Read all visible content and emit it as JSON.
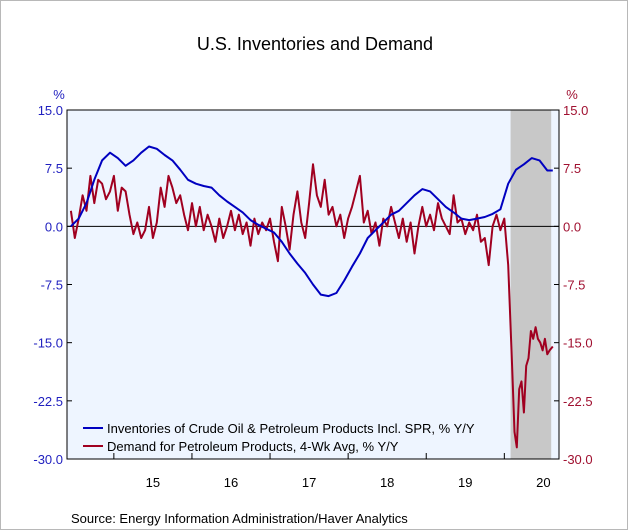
{
  "chart_data": {
    "type": "line",
    "title": "U.S. Inventories and Demand",
    "left_axis_unit": "%",
    "right_axis_unit": "%",
    "ylim": [
      -30,
      15
    ],
    "y_ticks": [
      15.0,
      7.5,
      0.0,
      -7.5,
      -15.0,
      -22.5,
      -30.0
    ],
    "y_tick_labels": [
      "15.0",
      "7.5",
      "0.0",
      "-7.5",
      "-15.0",
      "-22.5",
      "-30.0"
    ],
    "xlim": [
      2014.4,
      2020.7
    ],
    "x_tick_labels": [
      "15",
      "16",
      "17",
      "18",
      "19",
      "20"
    ],
    "recession_shading": [
      2020.08,
      2020.6
    ],
    "grid": false,
    "legend_position": "bottom-left",
    "colors": {
      "inventories": "#0000c0",
      "demand": "#a00020",
      "plot_background": "#eef5ff",
      "recession": "#c8c8c8",
      "left_axis_labels": "#1f1fbf",
      "right_axis_labels": "#a01030"
    },
    "series": [
      {
        "name": "Inventories of Crude Oil & Petroleum Products Incl. SPR, % Y/Y",
        "x": [
          2014.45,
          2014.55,
          2014.65,
          2014.75,
          2014.85,
          2014.95,
          2015.05,
          2015.15,
          2015.25,
          2015.35,
          2015.45,
          2015.55,
          2015.65,
          2015.75,
          2015.85,
          2015.95,
          2016.05,
          2016.15,
          2016.25,
          2016.35,
          2016.45,
          2016.55,
          2016.65,
          2016.75,
          2016.85,
          2016.95,
          2017.05,
          2017.15,
          2017.25,
          2017.35,
          2017.45,
          2017.55,
          2017.65,
          2017.75,
          2017.85,
          2017.95,
          2018.05,
          2018.15,
          2018.25,
          2018.35,
          2018.45,
          2018.55,
          2018.65,
          2018.75,
          2018.85,
          2018.95,
          2019.05,
          2019.15,
          2019.25,
          2019.35,
          2019.45,
          2019.55,
          2019.65,
          2019.75,
          2019.85,
          2019.95,
          2020.05,
          2020.15,
          2020.25,
          2020.35,
          2020.45,
          2020.55,
          2020.62
        ],
        "values": [
          0.0,
          1.0,
          3.0,
          6.0,
          8.5,
          9.5,
          8.8,
          7.8,
          8.5,
          9.5,
          10.3,
          10.0,
          9.2,
          8.5,
          7.3,
          6.0,
          5.5,
          5.2,
          5.0,
          4.0,
          3.2,
          2.5,
          1.8,
          0.8,
          0.2,
          -0.3,
          -0.8,
          -2.0,
          -3.5,
          -4.8,
          -6.0,
          -7.5,
          -8.8,
          -9.0,
          -8.6,
          -7.0,
          -5.2,
          -3.5,
          -1.5,
          -0.5,
          0.5,
          1.5,
          2.0,
          3.0,
          4.0,
          4.8,
          4.5,
          3.5,
          2.5,
          1.8,
          1.0,
          0.8,
          1.0,
          1.2,
          1.6,
          2.2,
          5.5,
          7.3,
          8.0,
          8.8,
          8.5,
          7.2,
          7.2
        ]
      },
      {
        "name": "Demand for Petroleum Products, 4-Wk Avg, % Y/Y",
        "x": [
          2014.45,
          2014.5,
          2014.55,
          2014.6,
          2014.65,
          2014.7,
          2014.75,
          2014.8,
          2014.85,
          2014.9,
          2014.95,
          2015.0,
          2015.05,
          2015.1,
          2015.15,
          2015.2,
          2015.25,
          2015.3,
          2015.35,
          2015.4,
          2015.45,
          2015.5,
          2015.55,
          2015.6,
          2015.65,
          2015.7,
          2015.75,
          2015.8,
          2015.85,
          2015.9,
          2015.95,
          2016.0,
          2016.05,
          2016.1,
          2016.15,
          2016.2,
          2016.25,
          2016.3,
          2016.35,
          2016.4,
          2016.45,
          2016.5,
          2016.55,
          2016.6,
          2016.65,
          2016.7,
          2016.75,
          2016.8,
          2016.85,
          2016.9,
          2016.95,
          2017.0,
          2017.05,
          2017.1,
          2017.15,
          2017.2,
          2017.25,
          2017.3,
          2017.35,
          2017.4,
          2017.45,
          2017.5,
          2017.55,
          2017.6,
          2017.65,
          2017.7,
          2017.75,
          2017.8,
          2017.85,
          2017.9,
          2017.95,
          2018.0,
          2018.05,
          2018.1,
          2018.15,
          2018.2,
          2018.25,
          2018.3,
          2018.35,
          2018.4,
          2018.45,
          2018.5,
          2018.55,
          2018.6,
          2018.65,
          2018.7,
          2018.75,
          2018.8,
          2018.85,
          2018.9,
          2018.95,
          2019.0,
          2019.05,
          2019.1,
          2019.15,
          2019.2,
          2019.25,
          2019.3,
          2019.35,
          2019.4,
          2019.45,
          2019.5,
          2019.55,
          2019.6,
          2019.65,
          2019.7,
          2019.75,
          2019.8,
          2019.85,
          2019.9,
          2019.95,
          2020.0,
          2020.05,
          2020.1,
          2020.13,
          2020.16,
          2020.19,
          2020.22,
          2020.25,
          2020.28,
          2020.31,
          2020.34,
          2020.37,
          2020.4,
          2020.43,
          2020.46,
          2020.49,
          2020.52,
          2020.55,
          2020.58,
          2020.62
        ],
        "values": [
          2.0,
          -1.5,
          1.0,
          4.0,
          2.0,
          6.5,
          3.0,
          6.0,
          5.5,
          3.5,
          4.5,
          6.5,
          2.0,
          5.0,
          4.5,
          1.5,
          -1.0,
          0.5,
          -1.5,
          -0.5,
          2.5,
          -1.5,
          0.5,
          5.0,
          2.5,
          6.5,
          5.0,
          3.0,
          4.0,
          1.5,
          -0.5,
          3.0,
          0.0,
          2.5,
          -0.5,
          1.5,
          0.0,
          -2.0,
          1.0,
          -1.5,
          0.0,
          2.0,
          -0.5,
          1.5,
          -1.0,
          0.5,
          -2.5,
          1.0,
          -1.0,
          0.5,
          -0.5,
          1.0,
          -2.0,
          -4.5,
          2.5,
          0.0,
          -3.0,
          1.5,
          4.5,
          0.5,
          -1.5,
          3.0,
          8.0,
          4.0,
          2.5,
          6.0,
          1.5,
          2.5,
          0.0,
          1.5,
          -1.5,
          1.0,
          2.5,
          4.5,
          6.5,
          0.5,
          2.0,
          -1.0,
          0.5,
          -2.5,
          1.0,
          0.0,
          2.5,
          0.5,
          -1.5,
          1.0,
          -2.0,
          0.5,
          -3.5,
          0.0,
          2.5,
          0.0,
          1.5,
          -0.5,
          3.0,
          1.0,
          0.0,
          -1.0,
          4.0,
          0.5,
          1.0,
          -1.0,
          0.5,
          -0.5,
          1.5,
          -2.0,
          -1.5,
          -5.0,
          0.0,
          1.5,
          -0.5,
          1.0,
          -5.0,
          -18.0,
          -26.5,
          -28.5,
          -21.0,
          -20.0,
          -24.0,
          -18.0,
          -17.0,
          -13.5,
          -14.5,
          -13.0,
          -14.5,
          -15.0,
          -16.0,
          -14.5,
          -16.5,
          -16.0,
          -15.5
        ]
      }
    ],
    "source": "Source:  Energy Information Administration/Haver Analytics"
  }
}
